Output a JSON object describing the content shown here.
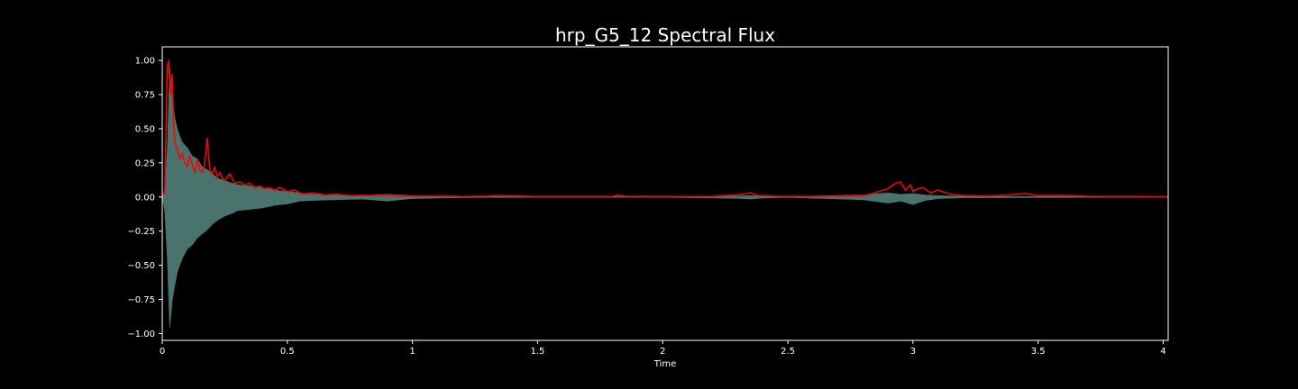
{
  "chart_data": {
    "type": "line",
    "title": "hrp_G5_12 Spectral Flux",
    "xlabel": "Time",
    "ylabel": "",
    "xlim": [
      0,
      4.02
    ],
    "ylim": [
      -1.05,
      1.1
    ],
    "x_ticks": [
      0,
      0.5,
      1,
      1.5,
      2,
      2.5,
      3,
      3.5,
      4
    ],
    "x_tick_labels": [
      "0",
      "0.5",
      "1",
      "1.5",
      "2",
      "2.5",
      "3",
      "3.5",
      "4"
    ],
    "y_ticks": [
      1.0,
      0.75,
      0.5,
      0.25,
      0.0,
      -0.25,
      -0.5,
      -0.75,
      -1.0
    ],
    "y_tick_labels": [
      "1.00",
      "0.75",
      "0.50",
      "0.25",
      "0.00",
      "−0.25",
      "−0.50",
      "−0.75",
      "−1.00"
    ],
    "grid": false,
    "legend": "none",
    "series": [
      {
        "kind": "waveform-envelope",
        "color": "#4f7a73",
        "x": [
          0,
          0.01,
          0.02,
          0.03,
          0.04,
          0.05,
          0.06,
          0.07,
          0.08,
          0.1,
          0.12,
          0.14,
          0.16,
          0.18,
          0.2,
          0.22,
          0.25,
          0.28,
          0.3,
          0.35,
          0.4,
          0.45,
          0.5,
          0.55,
          0.6,
          0.7,
          0.8,
          0.9,
          0.95,
          1.0,
          1.1,
          1.2,
          1.5,
          1.8,
          2.0,
          2.3,
          2.35,
          2.4,
          2.5,
          2.8,
          2.9,
          2.95,
          3.0,
          3.05,
          3.1,
          3.2,
          3.5,
          3.8,
          4.02
        ],
        "upper": [
          0,
          0.05,
          0.35,
          0.95,
          0.72,
          0.58,
          0.5,
          0.45,
          0.4,
          0.36,
          0.3,
          0.28,
          0.22,
          0.2,
          0.17,
          0.14,
          0.12,
          0.1,
          0.09,
          0.08,
          0.07,
          0.05,
          0.04,
          0.03,
          0.02,
          0.015,
          0.012,
          0.02,
          0.015,
          0.01,
          0.006,
          0.005,
          0.003,
          0.003,
          0.002,
          0.008,
          0.01,
          0.006,
          0.003,
          0.015,
          0.03,
          0.02,
          0.025,
          0.015,
          0.01,
          0.006,
          0.004,
          0.003,
          0.002
        ],
        "lower": [
          0,
          -0.1,
          -0.45,
          -0.96,
          -0.76,
          -0.65,
          -0.55,
          -0.5,
          -0.45,
          -0.38,
          -0.35,
          -0.3,
          -0.27,
          -0.24,
          -0.2,
          -0.17,
          -0.14,
          -0.12,
          -0.1,
          -0.09,
          -0.08,
          -0.06,
          -0.05,
          -0.03,
          -0.025,
          -0.02,
          -0.015,
          -0.03,
          -0.02,
          -0.012,
          -0.008,
          -0.005,
          -0.003,
          -0.003,
          -0.002,
          -0.01,
          -0.015,
          -0.008,
          -0.003,
          -0.02,
          -0.045,
          -0.03,
          -0.055,
          -0.025,
          -0.012,
          -0.006,
          -0.004,
          -0.003,
          -0.002
        ]
      },
      {
        "kind": "spectral-flux",
        "color": "#ff0000",
        "x": [
          0,
          0.01,
          0.015,
          0.02,
          0.025,
          0.03,
          0.035,
          0.04,
          0.045,
          0.05,
          0.06,
          0.07,
          0.08,
          0.09,
          0.1,
          0.11,
          0.12,
          0.13,
          0.14,
          0.15,
          0.16,
          0.17,
          0.18,
          0.19,
          0.2,
          0.21,
          0.22,
          0.23,
          0.24,
          0.25,
          0.27,
          0.29,
          0.31,
          0.33,
          0.35,
          0.37,
          0.39,
          0.41,
          0.43,
          0.45,
          0.47,
          0.5,
          0.53,
          0.56,
          0.6,
          0.65,
          0.7,
          0.75,
          0.8,
          0.85,
          0.9,
          0.95,
          1.0,
          1.1,
          1.2,
          1.3,
          1.33,
          1.5,
          1.6,
          1.8,
          1.82,
          1.85,
          2.0,
          2.2,
          2.32,
          2.35,
          2.38,
          2.45,
          2.6,
          2.8,
          2.85,
          2.9,
          2.93,
          2.95,
          2.97,
          2.99,
          3.0,
          3.02,
          3.04,
          3.07,
          3.1,
          3.15,
          3.2,
          3.3,
          3.42,
          3.45,
          3.5,
          3.6,
          3.7,
          3.8,
          3.9,
          4.02
        ],
        "y": [
          0,
          0.02,
          0.5,
          0.95,
          1.0,
          0.85,
          0.75,
          0.9,
          0.55,
          0.4,
          0.35,
          0.28,
          0.32,
          0.25,
          0.22,
          0.3,
          0.24,
          0.18,
          0.27,
          0.2,
          0.18,
          0.25,
          0.43,
          0.2,
          0.17,
          0.22,
          0.15,
          0.18,
          0.14,
          0.12,
          0.17,
          0.1,
          0.11,
          0.09,
          0.1,
          0.07,
          0.08,
          0.06,
          0.07,
          0.05,
          0.07,
          0.04,
          0.05,
          0.02,
          0.03,
          0.015,
          0.02,
          0.01,
          0.012,
          0.01,
          0.01,
          0.008,
          0.005,
          0.006,
          0.004,
          0.006,
          0.01,
          0.004,
          0.003,
          0.004,
          0.015,
          0.005,
          0.003,
          0.004,
          0.02,
          0.03,
          0.012,
          0.005,
          0.004,
          0.008,
          0.03,
          0.06,
          0.1,
          0.11,
          0.05,
          0.09,
          0.04,
          0.06,
          0.07,
          0.03,
          0.05,
          0.02,
          0.01,
          0.006,
          0.02,
          0.025,
          0.01,
          0.012,
          0.005,
          0.004,
          0.003,
          0.002
        ]
      }
    ]
  }
}
